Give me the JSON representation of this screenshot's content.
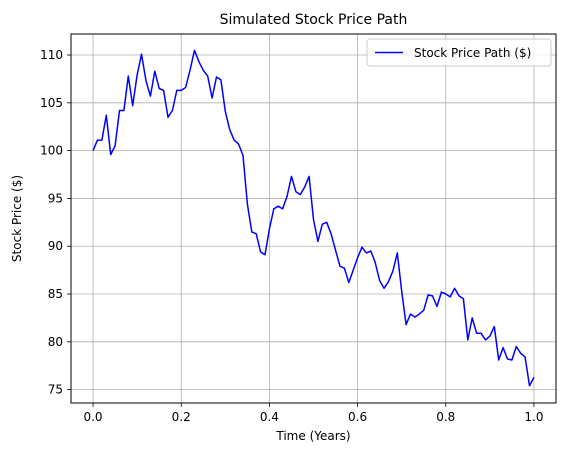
{
  "chart_data": {
    "type": "line",
    "title": "Simulated Stock Price Path",
    "xlabel": "Time (Years)",
    "ylabel": "Stock Price ($)",
    "xlim": [
      -0.05,
      1.05
    ],
    "ylim": [
      73.6,
      112.2
    ],
    "xticks": [
      0.0,
      0.2,
      0.4,
      0.6,
      0.8,
      1.0
    ],
    "xtick_labels": [
      "0.0",
      "0.2",
      "0.4",
      "0.6",
      "0.8",
      "1.0"
    ],
    "yticks": [
      75,
      80,
      85,
      90,
      95,
      100,
      105,
      110
    ],
    "ytick_labels": [
      "75",
      "80",
      "85",
      "90",
      "95",
      "100",
      "105",
      "110"
    ],
    "grid": true,
    "legend": {
      "position": "top-right"
    },
    "series": [
      {
        "name": "Stock Price Path ($)",
        "color": "#0000ff",
        "x": [
          0.0,
          0.01,
          0.02,
          0.03,
          0.04,
          0.05,
          0.06,
          0.07,
          0.08,
          0.09,
          0.1,
          0.11,
          0.12,
          0.13,
          0.14,
          0.15,
          0.16,
          0.17,
          0.18,
          0.19,
          0.2,
          0.21,
          0.22,
          0.23,
          0.24,
          0.25,
          0.26,
          0.27,
          0.28,
          0.29,
          0.3,
          0.31,
          0.32,
          0.33,
          0.34,
          0.35,
          0.36,
          0.37,
          0.38,
          0.39,
          0.4,
          0.41,
          0.42,
          0.43,
          0.44,
          0.45,
          0.46,
          0.47,
          0.48,
          0.49,
          0.5,
          0.51,
          0.52,
          0.53,
          0.54,
          0.55,
          0.56,
          0.57,
          0.58,
          0.59,
          0.6,
          0.61,
          0.62,
          0.63,
          0.64,
          0.65,
          0.66,
          0.67,
          0.68,
          0.69,
          0.7,
          0.71,
          0.72,
          0.73,
          0.74,
          0.75,
          0.76,
          0.77,
          0.78,
          0.79,
          0.8,
          0.81,
          0.82,
          0.83,
          0.84,
          0.85,
          0.86,
          0.87,
          0.88,
          0.89,
          0.9,
          0.91,
          0.92,
          0.93,
          0.94,
          0.95,
          0.96,
          0.97,
          0.98,
          0.99,
          1.0
        ],
        "y": [
          100.0,
          101.1,
          101.1,
          103.7,
          99.6,
          100.5,
          104.2,
          104.2,
          107.8,
          104.7,
          107.9,
          110.1,
          107.3,
          105.7,
          108.3,
          106.5,
          106.3,
          103.5,
          104.2,
          106.3,
          106.3,
          106.6,
          108.4,
          110.5,
          109.3,
          108.4,
          107.8,
          105.5,
          107.7,
          107.4,
          104.1,
          102.2,
          101.1,
          100.7,
          99.5,
          94.4,
          91.5,
          91.3,
          89.4,
          89.1,
          91.8,
          93.9,
          94.2,
          93.9,
          95.2,
          97.3,
          95.7,
          95.4,
          96.2,
          97.3,
          92.8,
          90.5,
          92.3,
          92.5,
          91.3,
          89.6,
          87.9,
          87.7,
          86.2,
          87.5,
          88.8,
          89.9,
          89.3,
          89.5,
          88.3,
          86.4,
          85.6,
          86.3,
          87.4,
          89.3,
          85.3,
          81.8,
          82.9,
          82.6,
          82.9,
          83.3,
          84.9,
          84.8,
          83.7,
          85.2,
          85.0,
          84.7,
          85.6,
          84.8,
          84.5,
          80.2,
          82.5,
          80.9,
          80.9,
          80.2,
          80.6,
          81.6,
          78.1,
          79.4,
          78.2,
          78.1,
          79.5,
          78.8,
          78.4,
          75.4,
          76.3
        ]
      }
    ]
  }
}
